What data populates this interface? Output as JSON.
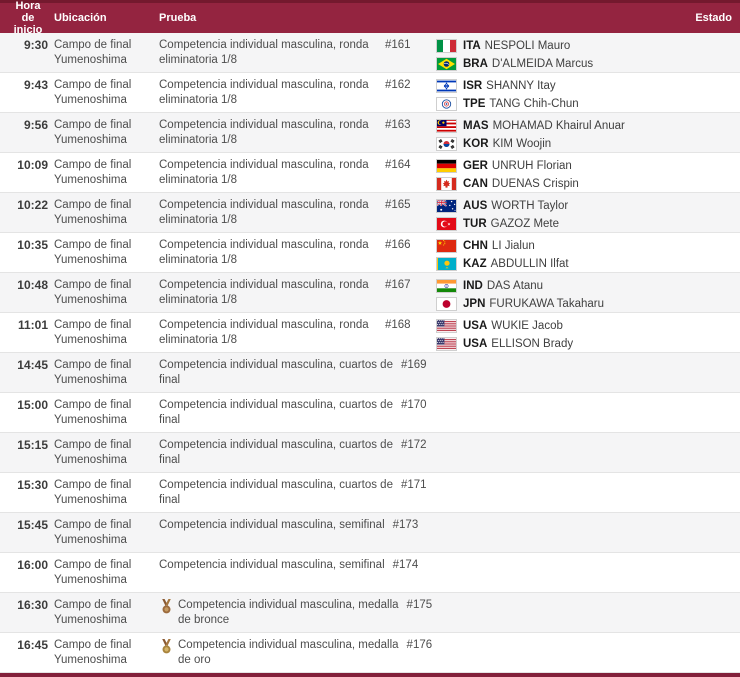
{
  "header": {
    "time": "Hora de inicio",
    "location": "Ubicación",
    "event": "Prueba",
    "status": "Estado"
  },
  "colors": {
    "header_bg": "#942440",
    "header_border": "#74192e",
    "row_alt": "#f5f5f6",
    "bottom_bar": "#82203a",
    "bronze_medal": "#9c6a3c",
    "gold_medal": "#a8833c"
  },
  "rows": [
    {
      "time": "9:30",
      "location": [
        "Campo de final",
        "Yumenoshima"
      ],
      "event": [
        "Competencia individual masculina, ronda",
        "eliminatoria 1/8"
      ],
      "medal": null,
      "match": "#161",
      "athletes": [
        {
          "country": "ITA",
          "name": "NESPOLI Mauro"
        },
        {
          "country": "BRA",
          "name": "D'ALMEIDA Marcus"
        }
      ],
      "status": ""
    },
    {
      "time": "9:43",
      "location": [
        "Campo de final",
        "Yumenoshima"
      ],
      "event": [
        "Competencia individual masculina, ronda",
        "eliminatoria 1/8"
      ],
      "medal": null,
      "match": "#162",
      "athletes": [
        {
          "country": "ISR",
          "name": "SHANNY Itay"
        },
        {
          "country": "TPE",
          "name": "TANG Chih-Chun"
        }
      ],
      "status": ""
    },
    {
      "time": "9:56",
      "location": [
        "Campo de final",
        "Yumenoshima"
      ],
      "event": [
        "Competencia individual masculina, ronda",
        "eliminatoria 1/8"
      ],
      "medal": null,
      "match": "#163",
      "athletes": [
        {
          "country": "MAS",
          "name": "MOHAMAD Khairul Anuar"
        },
        {
          "country": "KOR",
          "name": "KIM Woojin"
        }
      ],
      "status": ""
    },
    {
      "time": "10:09",
      "location": [
        "Campo de final",
        "Yumenoshima"
      ],
      "event": [
        "Competencia individual masculina, ronda",
        "eliminatoria 1/8"
      ],
      "medal": null,
      "match": "#164",
      "athletes": [
        {
          "country": "GER",
          "name": "UNRUH Florian"
        },
        {
          "country": "CAN",
          "name": "DUENAS Crispin"
        }
      ],
      "status": ""
    },
    {
      "time": "10:22",
      "location": [
        "Campo de final",
        "Yumenoshima"
      ],
      "event": [
        "Competencia individual masculina, ronda",
        "eliminatoria 1/8"
      ],
      "medal": null,
      "match": "#165",
      "athletes": [
        {
          "country": "AUS",
          "name": "WORTH Taylor"
        },
        {
          "country": "TUR",
          "name": "GAZOZ Mete"
        }
      ],
      "status": ""
    },
    {
      "time": "10:35",
      "location": [
        "Campo de final",
        "Yumenoshima"
      ],
      "event": [
        "Competencia individual masculina, ronda",
        "eliminatoria 1/8"
      ],
      "medal": null,
      "match": "#166",
      "athletes": [
        {
          "country": "CHN",
          "name": "LI Jialun"
        },
        {
          "country": "KAZ",
          "name": "ABDULLIN Ilfat"
        }
      ],
      "status": ""
    },
    {
      "time": "10:48",
      "location": [
        "Campo de final",
        "Yumenoshima"
      ],
      "event": [
        "Competencia individual masculina, ronda",
        "eliminatoria 1/8"
      ],
      "medal": null,
      "match": "#167",
      "athletes": [
        {
          "country": "IND",
          "name": "DAS Atanu"
        },
        {
          "country": "JPN",
          "name": "FURUKAWA Takaharu"
        }
      ],
      "status": ""
    },
    {
      "time": "11:01",
      "location": [
        "Campo de final",
        "Yumenoshima"
      ],
      "event": [
        "Competencia individual masculina, ronda",
        "eliminatoria 1/8"
      ],
      "medal": null,
      "match": "#168",
      "athletes": [
        {
          "country": "USA",
          "name": "WUKIE Jacob"
        },
        {
          "country": "USA",
          "name": "ELLISON Brady"
        }
      ],
      "status": ""
    },
    {
      "time": "14:45",
      "location": [
        "Campo de final",
        "Yumenoshima"
      ],
      "event": [
        "Competencia individual masculina, cuartos de",
        "final"
      ],
      "medal": null,
      "match": "#169",
      "athletes": [],
      "status": ""
    },
    {
      "time": "15:00",
      "location": [
        "Campo de final",
        "Yumenoshima"
      ],
      "event": [
        "Competencia individual masculina, cuartos de",
        "final"
      ],
      "medal": null,
      "match": "#170",
      "athletes": [],
      "status": ""
    },
    {
      "time": "15:15",
      "location": [
        "Campo de final",
        "Yumenoshima"
      ],
      "event": [
        "Competencia individual masculina, cuartos de",
        "final"
      ],
      "medal": null,
      "match": "#172",
      "athletes": [],
      "status": ""
    },
    {
      "time": "15:30",
      "location": [
        "Campo de final",
        "Yumenoshima"
      ],
      "event": [
        "Competencia individual masculina, cuartos de",
        "final"
      ],
      "medal": null,
      "match": "#171",
      "athletes": [],
      "status": ""
    },
    {
      "time": "15:45",
      "location": [
        "Campo de final",
        "Yumenoshima"
      ],
      "event": [
        "Competencia individual masculina, semifinal"
      ],
      "medal": null,
      "match": "#173",
      "athletes": [],
      "status": ""
    },
    {
      "time": "16:00",
      "location": [
        "Campo de final",
        "Yumenoshima"
      ],
      "event": [
        "Competencia individual masculina, semifinal"
      ],
      "medal": null,
      "match": "#174",
      "athletes": [],
      "status": ""
    },
    {
      "time": "16:30",
      "location": [
        "Campo de final",
        "Yumenoshima"
      ],
      "event": [
        "Competencia individual masculina, medalla",
        "de bronce"
      ],
      "medal": "bronze",
      "match": "#175",
      "athletes": [],
      "status": ""
    },
    {
      "time": "16:45",
      "location": [
        "Campo de final",
        "Yumenoshima"
      ],
      "event": [
        "Competencia individual masculina, medalla",
        "de oro"
      ],
      "medal": "gold",
      "match": "#176",
      "athletes": [],
      "status": ""
    }
  ]
}
